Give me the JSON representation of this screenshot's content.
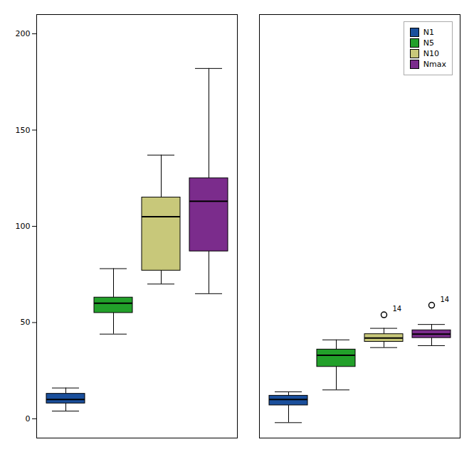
{
  "chart_data": {
    "type": "box",
    "categories": [
      null,
      null
    ],
    "series": [
      {
        "name": "N1",
        "color": "#1a4f9c",
        "boxes": [
          {
            "whislo": 4,
            "q1": 8,
            "med": 10,
            "q3": 13,
            "whishi": 16,
            "fliers": [],
            "flier_labels": []
          },
          {
            "whislo": -2,
            "q1": 7,
            "med": 10,
            "q3": 12,
            "whishi": 14,
            "fliers": [],
            "flier_labels": []
          }
        ]
      },
      {
        "name": "N5",
        "color": "#22a02a",
        "boxes": [
          {
            "whislo": 44,
            "q1": 55,
            "med": 60,
            "q3": 63,
            "whishi": 78,
            "fliers": [],
            "flier_labels": []
          },
          {
            "whislo": 15,
            "q1": 27,
            "med": 33,
            "q3": 36,
            "whishi": 41,
            "fliers": [],
            "flier_labels": []
          }
        ]
      },
      {
        "name": "N10",
        "color": "#c8c87a",
        "boxes": [
          {
            "whislo": 70,
            "q1": 77,
            "med": 105,
            "q3": 115,
            "whishi": 137,
            "fliers": [],
            "flier_labels": []
          },
          {
            "whislo": 37,
            "q1": 40,
            "med": 42,
            "q3": 44,
            "whishi": 47,
            "fliers": [
              54
            ],
            "flier_labels": [
              "14"
            ]
          }
        ]
      },
      {
        "name": "Nmax",
        "color": "#7b2c8c",
        "boxes": [
          {
            "whislo": 65,
            "q1": 87,
            "med": 113,
            "q3": 125,
            "whishi": 182,
            "fliers": [],
            "flier_labels": []
          },
          {
            "whislo": 38,
            "q1": 42,
            "med": 44,
            "q3": 46,
            "whishi": 49,
            "fliers": [
              59
            ],
            "flier_labels": [
              "14"
            ]
          }
        ]
      }
    ],
    "ylim": [
      -10,
      210
    ],
    "yticks": [
      0,
      50,
      100,
      150,
      200
    ],
    "grid": false,
    "legend": "upper right",
    "tick_labels": "y"
  }
}
